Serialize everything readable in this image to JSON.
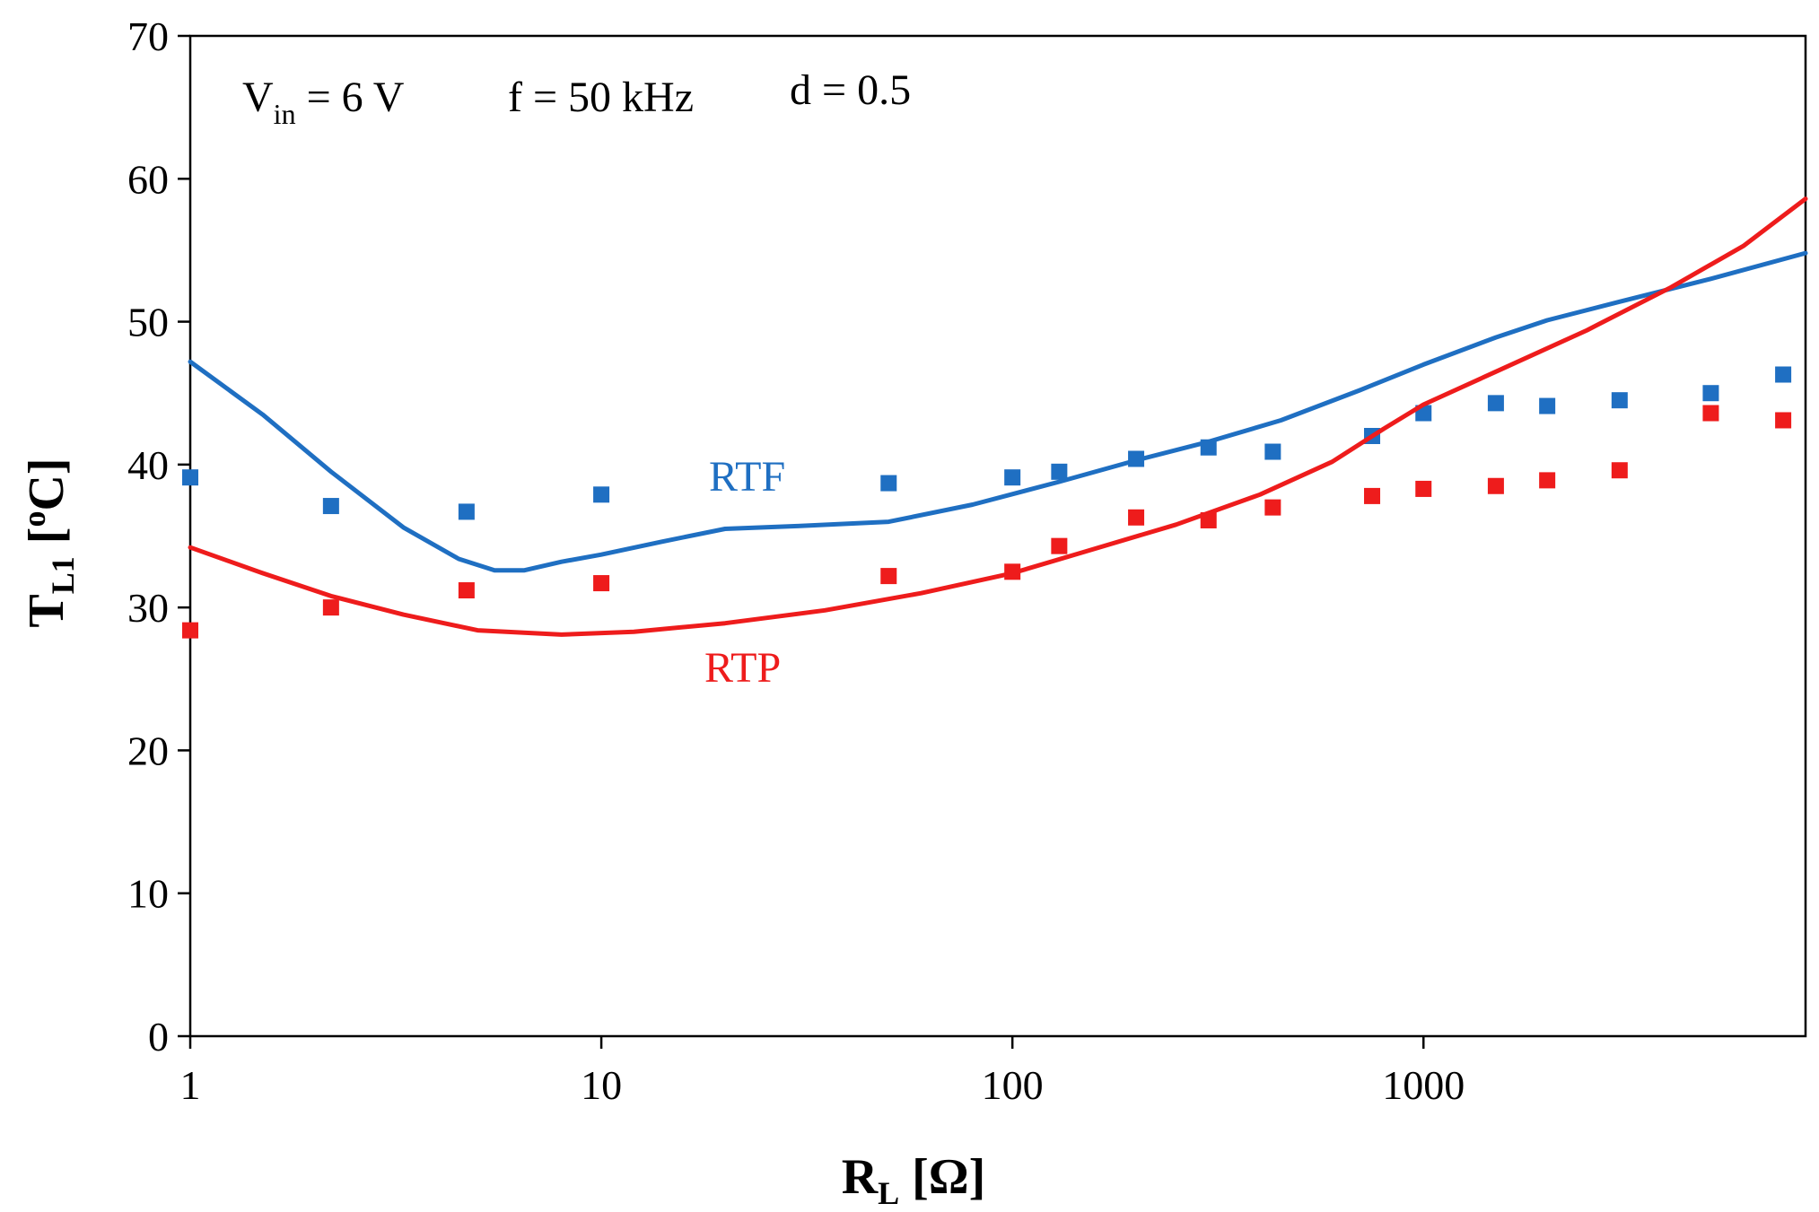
{
  "chart_data": {
    "type": "scatter",
    "x_scale": "log",
    "grid": false,
    "xlim": [
      1,
      8500
    ],
    "ylim": [
      0,
      70
    ],
    "xlabel": {
      "main": "R",
      "sub": "L",
      "rest": " [Ω]"
    },
    "ylabel": {
      "main": "T",
      "sub": "L1",
      "rest": " [",
      "sup": "o",
      "end": "C]"
    },
    "x_ticks": [
      1,
      10,
      100,
      1000
    ],
    "x_tick_labels": [
      "1",
      "10",
      "100",
      "1000"
    ],
    "y_ticks": [
      0,
      10,
      20,
      30,
      40,
      50,
      60,
      70
    ],
    "y_tick_labels": [
      "0",
      "10",
      "20",
      "30",
      "40",
      "50",
      "60",
      "70"
    ],
    "annotation": {
      "vin_main": "V",
      "vin_sub": "in",
      "vin_rest": " = 6 V",
      "freq": "f = 50 kHz",
      "duty": "d = 0.5"
    },
    "series": [
      {
        "name": "RTF",
        "color": "#1f6fc2",
        "curve": [
          [
            1,
            47.2
          ],
          [
            1.5,
            43.5
          ],
          [
            2.2,
            39.5
          ],
          [
            3.3,
            35.6
          ],
          [
            4.5,
            33.4
          ],
          [
            5.5,
            32.6
          ],
          [
            6.5,
            32.6
          ],
          [
            8,
            33.2
          ],
          [
            10,
            33.7
          ],
          [
            14,
            34.6
          ],
          [
            20,
            35.5
          ],
          [
            30,
            35.7
          ],
          [
            50,
            36.0
          ],
          [
            80,
            37.2
          ],
          [
            130,
            38.8
          ],
          [
            200,
            40.3
          ],
          [
            300,
            41.6
          ],
          [
            450,
            43.1
          ],
          [
            700,
            45.2
          ],
          [
            1000,
            47.0
          ],
          [
            1500,
            48.9
          ],
          [
            2000,
            50.1
          ],
          [
            3000,
            51.4
          ],
          [
            5000,
            53.0
          ],
          [
            8500,
            54.8
          ]
        ],
        "points": [
          [
            1,
            39.1
          ],
          [
            2.2,
            37.1
          ],
          [
            4.7,
            36.7
          ],
          [
            10,
            37.9
          ],
          [
            50,
            38.7
          ],
          [
            100,
            39.1
          ],
          [
            130,
            39.5
          ],
          [
            200,
            40.4
          ],
          [
            300,
            41.2
          ],
          [
            430,
            40.9
          ],
          [
            750,
            42.0
          ],
          [
            1000,
            43.6
          ],
          [
            1500,
            44.3
          ],
          [
            2000,
            44.1
          ],
          [
            3000,
            44.5
          ],
          [
            5000,
            45.0
          ],
          [
            7500,
            46.3
          ]
        ]
      },
      {
        "name": "RTP",
        "color": "#ee1c1c",
        "curve": [
          [
            1,
            34.2
          ],
          [
            1.5,
            32.4
          ],
          [
            2.2,
            30.8
          ],
          [
            3.3,
            29.5
          ],
          [
            5,
            28.4
          ],
          [
            8,
            28.1
          ],
          [
            12,
            28.3
          ],
          [
            20,
            28.9
          ],
          [
            35,
            29.8
          ],
          [
            60,
            31.0
          ],
          [
            100,
            32.4
          ],
          [
            150,
            33.9
          ],
          [
            250,
            35.8
          ],
          [
            400,
            37.9
          ],
          [
            600,
            40.2
          ],
          [
            800,
            42.5
          ],
          [
            1000,
            44.2
          ],
          [
            1500,
            46.5
          ],
          [
            2500,
            49.4
          ],
          [
            4000,
            52.4
          ],
          [
            6000,
            55.3
          ],
          [
            8500,
            58.6
          ]
        ],
        "points": [
          [
            1,
            28.4
          ],
          [
            2.2,
            30.0
          ],
          [
            4.7,
            31.2
          ],
          [
            10,
            31.7
          ],
          [
            50,
            32.2
          ],
          [
            100,
            32.5
          ],
          [
            130,
            34.3
          ],
          [
            200,
            36.3
          ],
          [
            300,
            36.1
          ],
          [
            430,
            37.0
          ],
          [
            750,
            37.8
          ],
          [
            1000,
            38.3
          ],
          [
            1500,
            38.5
          ],
          [
            2000,
            38.9
          ],
          [
            3000,
            39.6
          ],
          [
            5000,
            43.6
          ],
          [
            7500,
            43.1
          ]
        ]
      }
    ]
  }
}
